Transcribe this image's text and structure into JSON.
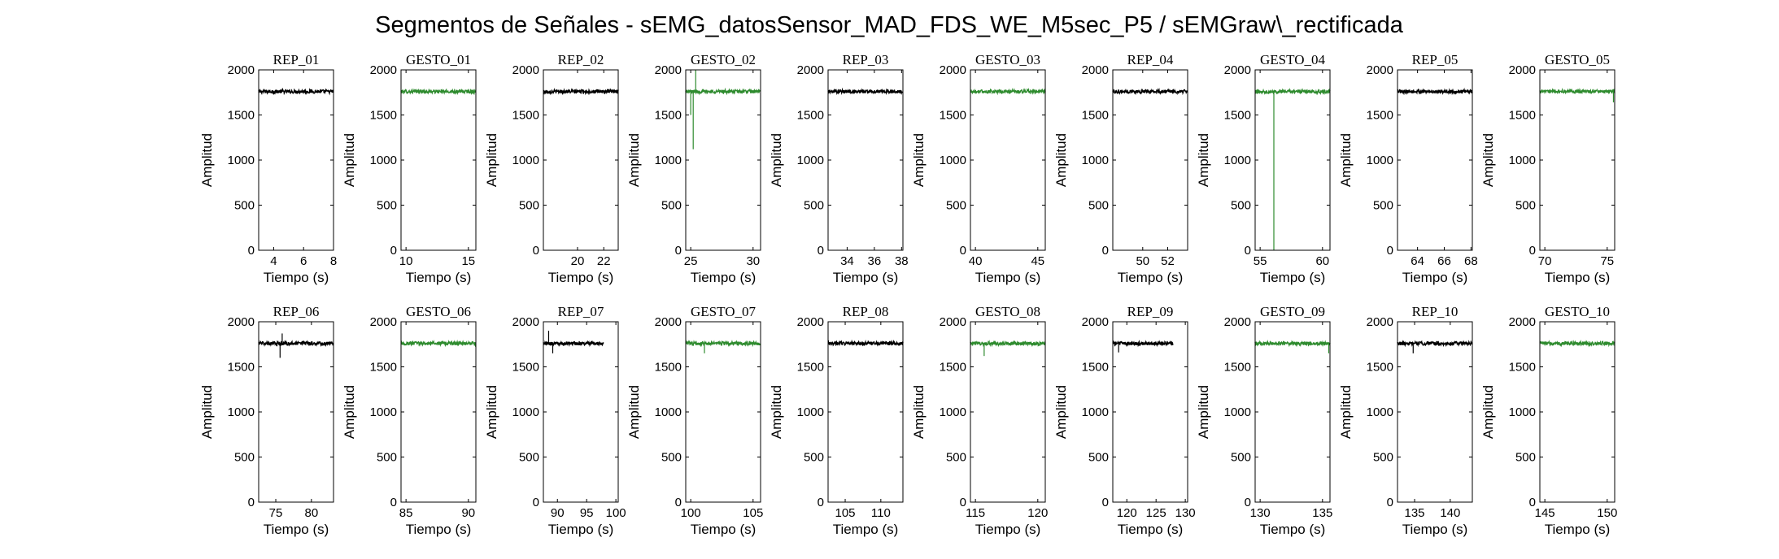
{
  "figure": {
    "title": "Segmentos de Señales - sEMG_datosSensor_MAD_FDS_WE_M5sec_P5 / sEMGraw\\_rectificada"
  },
  "colors": {
    "rep": "#000000",
    "gesto": "#2e8b2e",
    "axes": "#000000",
    "background": "#ffffff"
  },
  "chart_data": [
    {
      "type": "line",
      "title": "REP_01",
      "xlabel": "Tiempo (s)",
      "ylabel": "Amplitud",
      "xlim": [
        3,
        8
      ],
      "ylim": [
        0,
        2000
      ],
      "xticks": [
        4,
        6,
        8
      ],
      "yticks": [
        0,
        500,
        1000,
        1500,
        2000
      ],
      "series": [
        {
          "x_range": [
            3,
            8
          ],
          "baseline": 1760,
          "color": "#000000",
          "spikes": []
        }
      ]
    },
    {
      "type": "line",
      "title": "GESTO_01",
      "xlabel": "Tiempo (s)",
      "ylabel": "Amplitud",
      "xlim": [
        9.6,
        15.6
      ],
      "ylim": [
        0,
        2000
      ],
      "xticks": [
        10,
        15
      ],
      "yticks": [
        0,
        500,
        1000,
        1500,
        2000
      ],
      "series": [
        {
          "x_range": [
            9.6,
            15.6
          ],
          "baseline": 1760,
          "color": "#2e8b2e",
          "spikes": []
        }
      ]
    },
    {
      "type": "line",
      "title": "REP_02",
      "xlabel": "Tiempo (s)",
      "ylabel": "Amplitud",
      "xlim": [
        17.4,
        23.1
      ],
      "ylim": [
        0,
        2000
      ],
      "xticks": [
        20,
        22
      ],
      "yticks": [
        0,
        500,
        1000,
        1500,
        2000
      ],
      "series": [
        {
          "x_range": [
            17.4,
            23.1
          ],
          "baseline": 1760,
          "color": "#000000",
          "spikes": []
        }
      ]
    },
    {
      "type": "line",
      "title": "GESTO_02",
      "xlabel": "Tiempo (s)",
      "ylabel": "Amplitud",
      "xlim": [
        24.6,
        30.6
      ],
      "ylim": [
        0,
        2000
      ],
      "xticks": [
        25,
        30
      ],
      "yticks": [
        0,
        500,
        1000,
        1500,
        2000
      ],
      "series": [
        {
          "x_range": [
            24.6,
            30.6
          ],
          "baseline": 1760,
          "color": "#2e8b2e",
          "spikes": [
            {
              "x": 25.0,
              "y": 1500
            },
            {
              "x": 25.2,
              "y": 1120
            },
            {
              "x": 25.4,
              "y": 2000
            }
          ]
        }
      ]
    },
    {
      "type": "line",
      "title": "REP_03",
      "xlabel": "Tiempo (s)",
      "ylabel": "Amplitud",
      "xlim": [
        32.6,
        38.1
      ],
      "ylim": [
        0,
        2000
      ],
      "xticks": [
        34,
        36,
        38
      ],
      "yticks": [
        0,
        500,
        1000,
        1500,
        2000
      ],
      "series": [
        {
          "x_range": [
            32.6,
            38.1
          ],
          "baseline": 1760,
          "color": "#000000",
          "spikes": []
        }
      ]
    },
    {
      "type": "line",
      "title": "GESTO_03",
      "xlabel": "Tiempo (s)",
      "ylabel": "Amplitud",
      "xlim": [
        39.6,
        45.6
      ],
      "ylim": [
        0,
        2000
      ],
      "xticks": [
        40,
        45
      ],
      "yticks": [
        0,
        500,
        1000,
        1500,
        2000
      ],
      "series": [
        {
          "x_range": [
            39.6,
            45.6
          ],
          "baseline": 1760,
          "color": "#2e8b2e",
          "spikes": []
        }
      ]
    },
    {
      "type": "line",
      "title": "REP_04",
      "xlabel": "Tiempo (s)",
      "ylabel": "Amplitud",
      "xlim": [
        47.6,
        53.6
      ],
      "ylim": [
        0,
        2000
      ],
      "xticks": [
        50,
        52
      ],
      "yticks": [
        0,
        500,
        1000,
        1500,
        2000
      ],
      "series": [
        {
          "x_range": [
            47.6,
            53.6
          ],
          "baseline": 1760,
          "color": "#000000",
          "spikes": []
        }
      ]
    },
    {
      "type": "line",
      "title": "GESTO_04",
      "xlabel": "Tiempo (s)",
      "ylabel": "Amplitud",
      "xlim": [
        54.6,
        60.6
      ],
      "ylim": [
        0,
        2000
      ],
      "xticks": [
        55,
        60
      ],
      "yticks": [
        0,
        500,
        1000,
        1500,
        2000
      ],
      "series": [
        {
          "x_range": [
            54.6,
            60.6
          ],
          "baseline": 1760,
          "color": "#2e8b2e",
          "spikes": [
            {
              "x": 56.1,
              "y": 0
            }
          ]
        }
      ]
    },
    {
      "type": "line",
      "title": "REP_05",
      "xlabel": "Tiempo (s)",
      "ylabel": "Amplitud",
      "xlim": [
        62.5,
        68.1
      ],
      "ylim": [
        0,
        2000
      ],
      "xticks": [
        64,
        66,
        68
      ],
      "yticks": [
        0,
        500,
        1000,
        1500,
        2000
      ],
      "series": [
        {
          "x_range": [
            62.5,
            68.1
          ],
          "baseline": 1760,
          "color": "#000000",
          "spikes": []
        }
      ]
    },
    {
      "type": "line",
      "title": "GESTO_05",
      "xlabel": "Tiempo (s)",
      "ylabel": "Amplitud",
      "xlim": [
        69.6,
        75.6
      ],
      "ylim": [
        0,
        2000
      ],
      "xticks": [
        70,
        75
      ],
      "yticks": [
        0,
        500,
        1000,
        1500,
        2000
      ],
      "series": [
        {
          "x_range": [
            69.6,
            75.6
          ],
          "baseline": 1760,
          "color": "#2e8b2e",
          "spikes": [
            {
              "x": 75.5,
              "y": 1640
            }
          ]
        }
      ]
    },
    {
      "type": "line",
      "title": "REP_06",
      "xlabel": "Tiempo (s)",
      "ylabel": "Amplitud",
      "xlim": [
        72.6,
        83.1
      ],
      "ylim": [
        0,
        2000
      ],
      "xticks": [
        75,
        80
      ],
      "yticks": [
        0,
        500,
        1000,
        1500,
        2000
      ],
      "series": [
        {
          "x_range": [
            72.6,
            83.1
          ],
          "baseline": 1760,
          "color": "#000000",
          "spikes": [
            {
              "x": 75.6,
              "y": 1600
            },
            {
              "x": 75.9,
              "y": 1870
            }
          ]
        }
      ]
    },
    {
      "type": "line",
      "title": "GESTO_06",
      "xlabel": "Tiempo (s)",
      "ylabel": "Amplitud",
      "xlim": [
        84.6,
        90.6
      ],
      "ylim": [
        0,
        2000
      ],
      "xticks": [
        85,
        90
      ],
      "yticks": [
        0,
        500,
        1000,
        1500,
        2000
      ],
      "series": [
        {
          "x_range": [
            84.6,
            90.6
          ],
          "baseline": 1760,
          "color": "#2e8b2e",
          "spikes": []
        }
      ]
    },
    {
      "type": "line",
      "title": "REP_07",
      "xlabel": "Tiempo (s)",
      "ylabel": "Amplitud",
      "xlim": [
        87.6,
        100.4
      ],
      "ylim": [
        0,
        2000
      ],
      "xticks": [
        90,
        95,
        100
      ],
      "yticks": [
        0,
        500,
        1000,
        1500,
        2000
      ],
      "series": [
        {
          "x_range": [
            87.6,
            97.9
          ],
          "baseline": 1760,
          "color": "#000000",
          "spikes": [
            {
              "x": 88.5,
              "y": 1900
            },
            {
              "x": 89.2,
              "y": 1650
            }
          ]
        }
      ]
    },
    {
      "type": "line",
      "title": "GESTO_07",
      "xlabel": "Tiempo (s)",
      "ylabel": "Amplitud",
      "xlim": [
        99.6,
        105.6
      ],
      "ylim": [
        0,
        2000
      ],
      "xticks": [
        100,
        105
      ],
      "yticks": [
        0,
        500,
        1000,
        1500,
        2000
      ],
      "series": [
        {
          "x_range": [
            99.6,
            105.6
          ],
          "baseline": 1760,
          "color": "#2e8b2e",
          "spikes": [
            {
              "x": 101.1,
              "y": 1650
            }
          ]
        }
      ]
    },
    {
      "type": "line",
      "title": "REP_08",
      "xlabel": "Tiempo (s)",
      "ylabel": "Amplitud",
      "xlim": [
        102.6,
        113.1
      ],
      "ylim": [
        0,
        2000
      ],
      "xticks": [
        105,
        110
      ],
      "yticks": [
        0,
        500,
        1000,
        1500,
        2000
      ],
      "series": [
        {
          "x_range": [
            102.6,
            113.1
          ],
          "baseline": 1760,
          "color": "#000000",
          "spikes": []
        }
      ]
    },
    {
      "type": "line",
      "title": "GESTO_08",
      "xlabel": "Tiempo (s)",
      "ylabel": "Amplitud",
      "xlim": [
        114.6,
        120.6
      ],
      "ylim": [
        0,
        2000
      ],
      "xticks": [
        115,
        120
      ],
      "yticks": [
        0,
        500,
        1000,
        1500,
        2000
      ],
      "series": [
        {
          "x_range": [
            114.6,
            120.6
          ],
          "baseline": 1760,
          "color": "#2e8b2e",
          "spikes": [
            {
              "x": 115.7,
              "y": 1620
            }
          ]
        }
      ]
    },
    {
      "type": "line",
      "title": "REP_09",
      "xlabel": "Tiempo (s)",
      "ylabel": "Amplitud",
      "xlim": [
        117.6,
        130.4
      ],
      "ylim": [
        0,
        2000
      ],
      "xticks": [
        120,
        125,
        130
      ],
      "yticks": [
        0,
        500,
        1000,
        1500,
        2000
      ],
      "series": [
        {
          "x_range": [
            117.6,
            127.9
          ],
          "baseline": 1760,
          "color": "#000000",
          "spikes": [
            {
              "x": 118.6,
              "y": 1660
            }
          ]
        }
      ]
    },
    {
      "type": "line",
      "title": "GESTO_09",
      "xlabel": "Tiempo (s)",
      "ylabel": "Amplitud",
      "xlim": [
        129.6,
        135.6
      ],
      "ylim": [
        0,
        2000
      ],
      "xticks": [
        130,
        135
      ],
      "yticks": [
        0,
        500,
        1000,
        1500,
        2000
      ],
      "series": [
        {
          "x_range": [
            129.6,
            135.6
          ],
          "baseline": 1760,
          "color": "#2e8b2e",
          "spikes": [
            {
              "x": 135.5,
              "y": 1650
            }
          ]
        }
      ]
    },
    {
      "type": "line",
      "title": "REP_10",
      "xlabel": "Tiempo (s)",
      "ylabel": "Amplitud",
      "xlim": [
        132.6,
        143.1
      ],
      "ylim": [
        0,
        2000
      ],
      "xticks": [
        135,
        140
      ],
      "yticks": [
        0,
        500,
        1000,
        1500,
        2000
      ],
      "series": [
        {
          "x_range": [
            132.6,
            143.1
          ],
          "baseline": 1760,
          "color": "#000000",
          "spikes": [
            {
              "x": 134.8,
              "y": 1650
            }
          ]
        }
      ]
    },
    {
      "type": "line",
      "title": "GESTO_10",
      "xlabel": "Tiempo (s)",
      "ylabel": "Amplitud",
      "xlim": [
        144.6,
        150.6
      ],
      "ylim": [
        0,
        2000
      ],
      "xticks": [
        145,
        150
      ],
      "yticks": [
        0,
        500,
        1000,
        1500,
        2000
      ],
      "series": [
        {
          "x_range": [
            144.6,
            150.6
          ],
          "baseline": 1760,
          "color": "#2e8b2e",
          "spikes": []
        }
      ]
    }
  ]
}
